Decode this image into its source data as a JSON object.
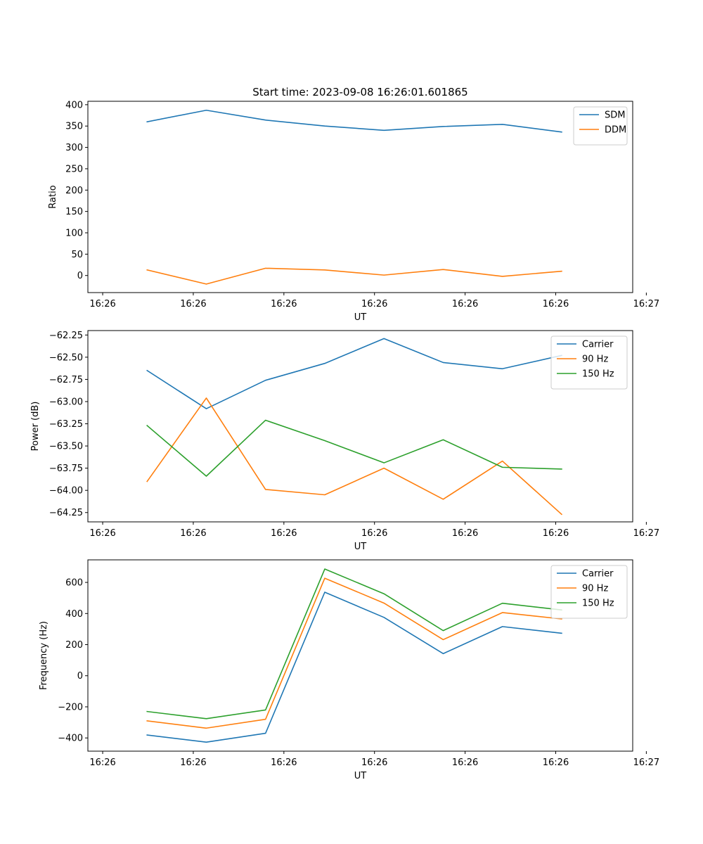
{
  "colors": {
    "blue": "#1f77b4",
    "orange": "#ff7f0e",
    "green": "#2ca02c"
  },
  "chart_data": [
    {
      "type": "line",
      "title": "Start time: 2023-09-08 16:26:01.601865",
      "xlabel": "UT",
      "ylabel": "Ratio",
      "x_tick_labels": [
        "16:26",
        "16:26",
        "16:26",
        "16:26",
        "16:26",
        "16:26",
        "16:26"
      ],
      "x_last_tick_label": "16:27",
      "xlim": [
        0,
        9.2
      ],
      "x_ticks": [
        0.25,
        1.78,
        3.31,
        4.84,
        6.37,
        7.9,
        9.43
      ],
      "x": [
        1,
        2,
        3,
        4,
        5,
        6,
        7,
        8
      ],
      "ylim": [
        -40,
        408
      ],
      "y_ticks": [
        0,
        50,
        100,
        150,
        200,
        250,
        300,
        350,
        400
      ],
      "y_tick_labels": [
        "0",
        "50",
        "100",
        "150",
        "200",
        "250",
        "300",
        "350",
        "400"
      ],
      "legend_loc": "top-right",
      "series": [
        {
          "name": "SDM",
          "color": "#1f77b4",
          "values": [
            360,
            387,
            364,
            350,
            340,
            349,
            354,
            336
          ]
        },
        {
          "name": "DDM",
          "color": "#ff7f0e",
          "values": [
            13,
            -20,
            17,
            13,
            1,
            14,
            -2,
            10
          ]
        }
      ]
    },
    {
      "type": "line",
      "title": "",
      "xlabel": "UT",
      "ylabel": "Power (dB)",
      "x_tick_labels": [
        "16:26",
        "16:26",
        "16:26",
        "16:26",
        "16:26",
        "16:26",
        "16:26"
      ],
      "x_last_tick_label": "16:27",
      "xlim": [
        0,
        9.2
      ],
      "x_ticks": [
        0.25,
        1.78,
        3.31,
        4.84,
        6.37,
        7.9,
        9.43
      ],
      "x": [
        1,
        2,
        3,
        4,
        5,
        6,
        7,
        8
      ],
      "ylim": [
        -64.355,
        -62.2
      ],
      "y_ticks": [
        -64.25,
        -64.0,
        -63.75,
        -63.5,
        -63.25,
        -63.0,
        -62.75,
        -62.5,
        -62.25
      ],
      "y_tick_labels": [
        "−64.25",
        "−64.00",
        "−63.75",
        "−63.50",
        "−63.25",
        "−63.00",
        "−62.75",
        "−62.50",
        "−62.25"
      ],
      "legend_loc": "top-right",
      "series": [
        {
          "name": "Carrier",
          "color": "#1f77b4",
          "values": [
            -62.65,
            -63.08,
            -62.76,
            -62.57,
            -62.29,
            -62.56,
            -62.63,
            -62.48
          ]
        },
        {
          "name": "90 Hz",
          "color": "#ff7f0e",
          "values": [
            -63.9,
            -62.96,
            -63.99,
            -64.05,
            -63.75,
            -64.1,
            -63.67,
            -64.27
          ]
        },
        {
          "name": "150 Hz",
          "color": "#2ca02c",
          "values": [
            -63.27,
            -63.84,
            -63.21,
            -63.44,
            -63.69,
            -63.43,
            -63.74,
            -63.76
          ]
        }
      ]
    },
    {
      "type": "line",
      "title": "",
      "xlabel": "UT",
      "ylabel": "Frequency (Hz)",
      "x_tick_labels": [
        "16:26",
        "16:26",
        "16:26",
        "16:26",
        "16:26",
        "16:26",
        "16:26"
      ],
      "x_last_tick_label": "16:27",
      "xlim": [
        0,
        9.2
      ],
      "x_ticks": [
        0.25,
        1.78,
        3.31,
        4.84,
        6.37,
        7.9,
        9.43
      ],
      "x": [
        1,
        2,
        3,
        4,
        5,
        6,
        7,
        8
      ],
      "ylim": [
        -485,
        745
      ],
      "y_ticks": [
        -400,
        -200,
        0,
        200,
        400,
        600
      ],
      "y_tick_labels": [
        "−400",
        "−200",
        "0",
        "200",
        "400",
        "600"
      ],
      "legend_loc": "top-right",
      "series": [
        {
          "name": "Carrier",
          "color": "#1f77b4",
          "values": [
            -381,
            -427,
            -370,
            537,
            375,
            142,
            316,
            273
          ]
        },
        {
          "name": "90 Hz",
          "color": "#ff7f0e",
          "values": [
            -290,
            -337,
            -280,
            627,
            467,
            232,
            406,
            365
          ]
        },
        {
          "name": "150 Hz",
          "color": "#2ca02c",
          "values": [
            -230,
            -276,
            -220,
            686,
            527,
            290,
            466,
            423
          ]
        }
      ]
    }
  ]
}
